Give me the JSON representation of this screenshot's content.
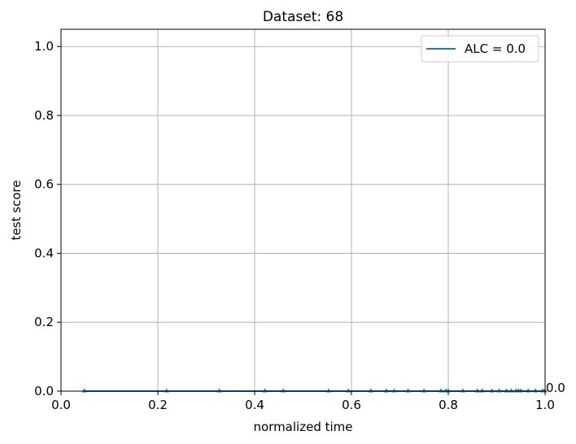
{
  "chart_data": {
    "type": "line",
    "title": "Dataset: 68",
    "xlabel": "normalized time",
    "ylabel": "test score",
    "xlim": [
      0.0,
      1.0
    ],
    "ylim": [
      0.0,
      1.05
    ],
    "grid": true,
    "x_ticks": [
      "0.0",
      "0.2",
      "0.4",
      "0.6",
      "0.8",
      "1.0"
    ],
    "y_ticks": [
      "0.0",
      "0.2",
      "0.4",
      "0.6",
      "0.8",
      "1.0"
    ],
    "legend_position": "top-right",
    "color": "#1f77b4",
    "series": [
      {
        "name": "ALC = 0.0",
        "marker": "triangle",
        "x": [
          0.048,
          0.218,
          0.327,
          0.421,
          0.459,
          0.553,
          0.594,
          0.64,
          0.672,
          0.688,
          0.717,
          0.75,
          0.785,
          0.795,
          0.8,
          0.83,
          0.86,
          0.87,
          0.89,
          0.905,
          0.92,
          0.93,
          0.94,
          0.945,
          0.95,
          0.965,
          0.98,
          0.995,
          1.0
        ],
        "y": [
          0,
          0,
          0,
          0,
          0,
          0,
          0,
          0,
          0,
          0,
          0,
          0,
          0,
          0,
          0,
          0,
          0,
          0,
          0,
          0,
          0,
          0,
          0,
          0,
          0,
          0,
          0,
          0,
          0
        ]
      }
    ],
    "end_annotation": "0.0"
  }
}
